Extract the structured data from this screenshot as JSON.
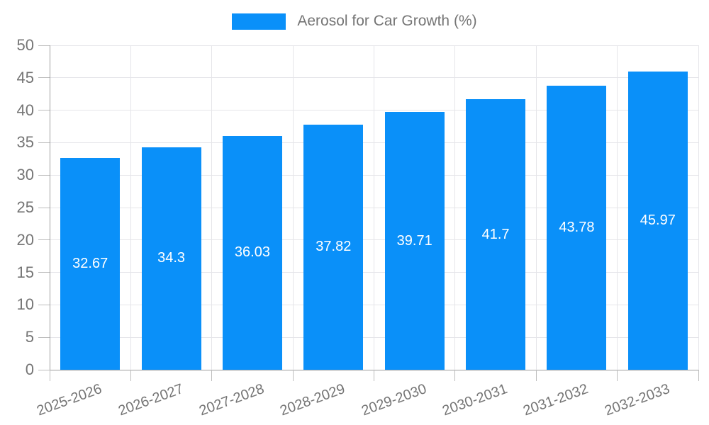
{
  "chart_data": {
    "type": "bar",
    "title": "Aerosol for Car Growth (%)",
    "legend": {
      "position": "top-center",
      "label": "Aerosol for Car Growth (%)"
    },
    "categories": [
      "2025-2026",
      "2026-2027",
      "2027-2028",
      "2028-2029",
      "2029-2030",
      "2030-2031",
      "2031-2032",
      "2032-2033"
    ],
    "series": [
      {
        "name": "Aerosol for Car Growth (%)",
        "values": [
          32.67,
          34.3,
          36.03,
          37.82,
          39.71,
          41.7,
          43.78,
          45.97
        ],
        "value_labels": [
          "32.67",
          "34.3",
          "36.03",
          "37.82",
          "39.71",
          "41.7",
          "43.78",
          "45.97"
        ]
      }
    ],
    "xlabel": "",
    "ylabel": "",
    "ylim": [
      0,
      50
    ],
    "yticks": [
      0,
      5,
      10,
      15,
      20,
      25,
      30,
      35,
      40,
      45,
      50
    ],
    "grid": true,
    "x_label_rotation_deg": -20,
    "value_label_position": "inside-center",
    "colors": {
      "bar": "#0A90F9",
      "value_label": "#FFFFFF",
      "axis_text": "#757575",
      "gridline": "#E5E5E9",
      "axis_line": "#9E9E9E",
      "tick": "#BDBDBD",
      "background": "#FFFFFF"
    }
  }
}
